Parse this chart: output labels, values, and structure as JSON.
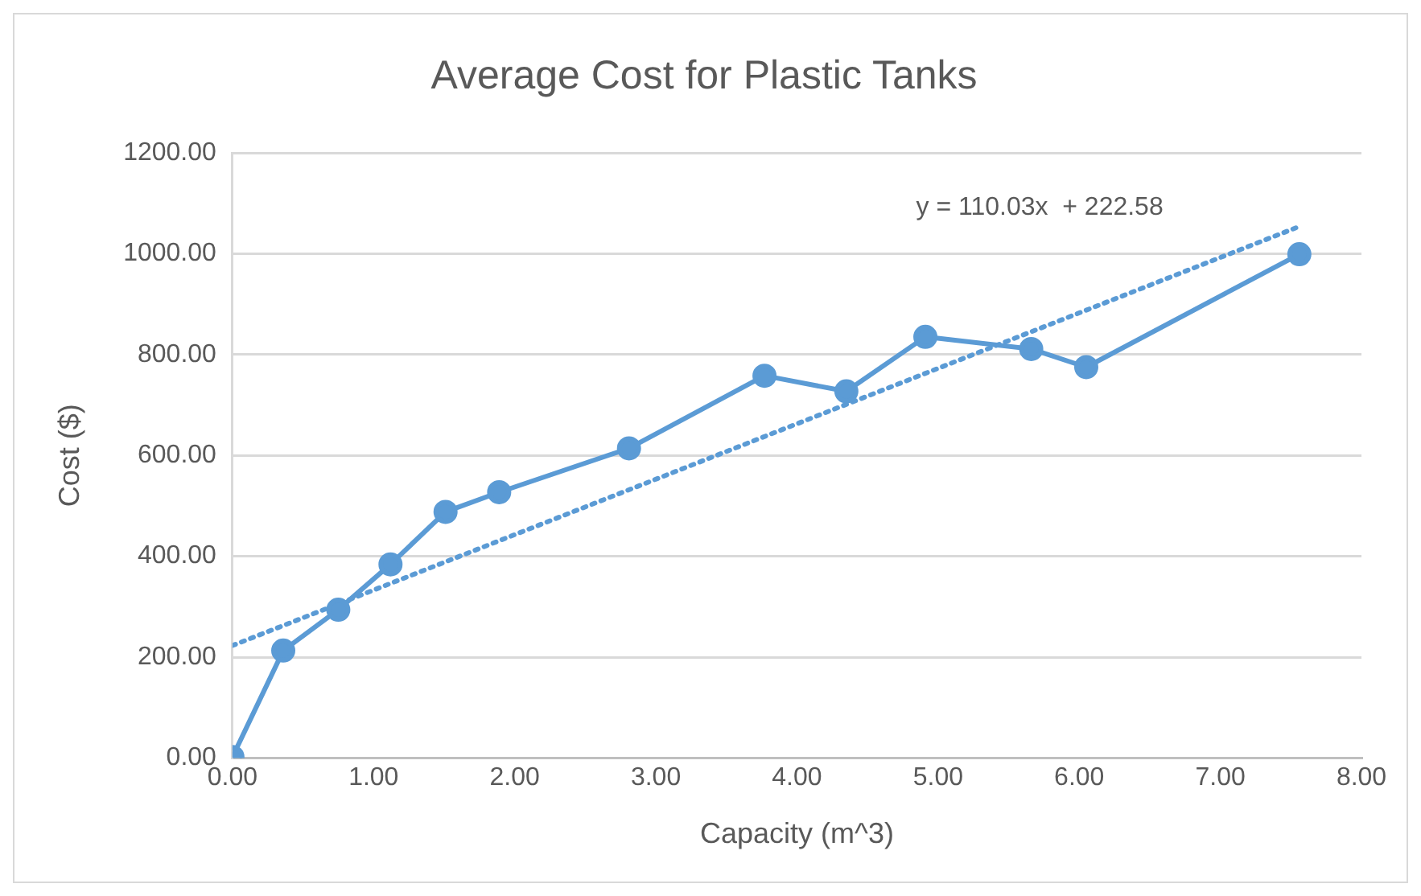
{
  "chart_data": {
    "type": "scatter",
    "title": "Average Cost for Plastic Tanks",
    "xlabel": "Capacity (m^3)",
    "ylabel": "Cost ($)",
    "series": [
      {
        "type": "line",
        "color": "#5b9bd5",
        "marker": "circle",
        "line_style": "solid",
        "x": [
          0,
          0.36,
          0.75,
          1.12,
          1.51,
          1.89,
          2.81,
          3.77,
          4.35,
          4.91,
          5.66,
          6.05,
          7.56
        ],
        "values": [
          2,
          213,
          294,
          384,
          488,
          527,
          614,
          758,
          727,
          835,
          811,
          775,
          999
        ]
      },
      {
        "type": "line",
        "color": "#5b9bd5",
        "marker": "none",
        "line_style": "dotted",
        "x": [
          0,
          7.56
        ],
        "values": [
          223,
          1054
        ]
      }
    ],
    "xlim": [
      0,
      8
    ],
    "xticks": [
      {
        "value": 0,
        "label": "0.00"
      },
      {
        "value": 1,
        "label": "1.00"
      },
      {
        "value": 2,
        "label": "2.00"
      },
      {
        "value": 3,
        "label": "3.00"
      },
      {
        "value": 4,
        "label": "4.00"
      },
      {
        "value": 5,
        "label": "5.00"
      },
      {
        "value": 6,
        "label": "6.00"
      },
      {
        "value": 7,
        "label": "7.00"
      },
      {
        "value": 8,
        "label": "8.00"
      }
    ],
    "ylim": [
      0,
      1200
    ],
    "yticks": [
      {
        "value": 0,
        "label": "0.00"
      },
      {
        "value": 200,
        "label": "200.00"
      },
      {
        "value": 400,
        "label": "400.00"
      },
      {
        "value": 600,
        "label": "600.00"
      },
      {
        "value": 800,
        "label": "800.00"
      },
      {
        "value": 1000,
        "label": "1000.00"
      },
      {
        "value": 1200,
        "label": "1200.00"
      }
    ],
    "grid": "y",
    "legend": false,
    "annotations": [
      "y = 110.03x  + 222.58"
    ]
  }
}
